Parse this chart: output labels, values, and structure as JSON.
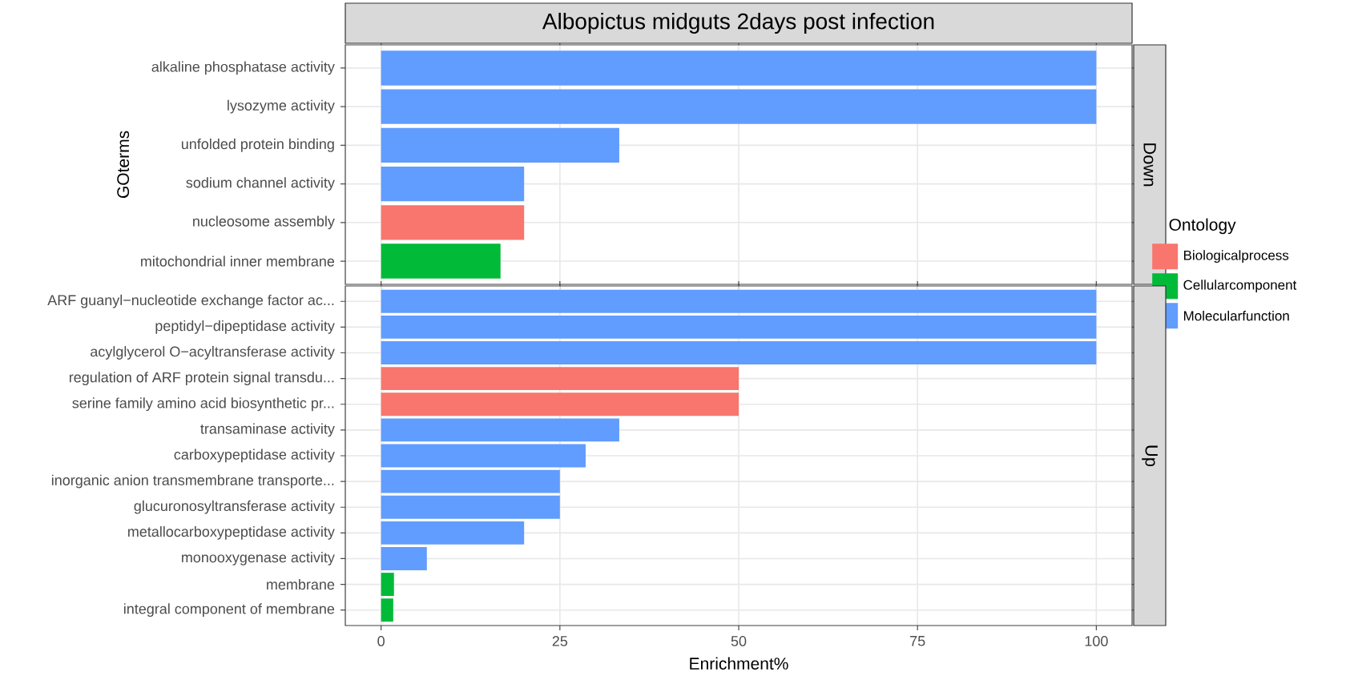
{
  "chart_data": [
    {
      "type": "bar",
      "orientation": "horizontal",
      "stacked": true,
      "title": "Albopictus midguts 2days post infection",
      "annotations": [
        "Down"
      ],
      "ylabel": "GOterms",
      "categories": [
        "alkaline phosphatase activity",
        "lysozyme activity",
        "unfolded protein binding",
        "sodium channel activity",
        "nucleosome assembly",
        "mitochondrial inner membrane"
      ],
      "series": [
        {
          "color": "#f8766d",
          "values": [
            null,
            null,
            null,
            null,
            20,
            null
          ]
        },
        {
          "color": "#00ba38",
          "values": [
            null,
            null,
            null,
            null,
            null,
            16.7
          ]
        },
        {
          "color": "#619cff",
          "values": [
            100,
            100,
            33.3,
            20,
            null,
            null
          ]
        }
      ],
      "xlim": [
        -5,
        105
      ],
      "xticks": [
        0,
        25,
        50,
        75,
        100
      ],
      "grid": true,
      "tick_labels": "y"
    },
    {
      "type": "bar",
      "orientation": "horizontal",
      "stacked": true,
      "annotations": [
        "Up"
      ],
      "xlabel": "Enrichment%",
      "legend_title": "Ontology",
      "legend": "right",
      "categories": [
        "ARF guanyl−nucleotide exchange factor ac...",
        "peptidyl−dipeptidase activity",
        "acylglycerol O−acyltransferase activity",
        "regulation of ARF protein signal transdu...",
        "serine family amino acid biosynthetic pr...",
        "transaminase activity",
        "carboxypeptidase activity",
        "inorganic anion transmembrane transporte...",
        "glucuronosyltransferase activity",
        "metallocarboxypeptidase activity",
        "monooxygenase activity",
        "membrane",
        "integral component of membrane"
      ],
      "series": [
        {
          "name": "Biologicalprocess",
          "color": "#f8766d",
          "values": [
            null,
            null,
            null,
            50,
            50,
            null,
            null,
            null,
            null,
            null,
            null,
            null,
            null
          ]
        },
        {
          "name": "Cellularcomponent",
          "color": "#00ba38",
          "values": [
            null,
            null,
            null,
            null,
            null,
            null,
            null,
            null,
            null,
            null,
            null,
            1.8,
            1.7
          ]
        },
        {
          "name": "Molecularfunction",
          "color": "#619cff",
          "values": [
            100,
            100,
            100,
            null,
            null,
            33.3,
            28.6,
            25,
            25,
            20,
            6.4,
            null,
            null
          ]
        }
      ],
      "xlim": [
        -5,
        105
      ],
      "xticks": [
        0,
        25,
        50,
        75,
        100
      ],
      "grid": true
    }
  ]
}
